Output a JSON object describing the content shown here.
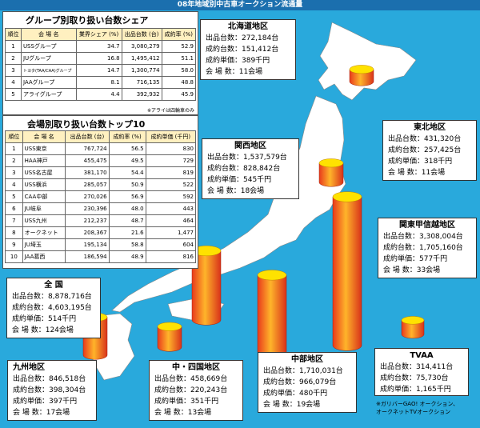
{
  "title": "08年地域別中古車オークション流通量",
  "group_table": {
    "title": "グループ別取り扱い台数シェア",
    "headers": [
      "順位",
      "会 場 名",
      "業界シェア (%)",
      "出品台数 (台)",
      "成約率 (%)"
    ],
    "rows": [
      [
        "1",
        "USSグループ",
        "34.7",
        "3,080,279",
        "52.9"
      ],
      [
        "2",
        "JUグループ",
        "16.8",
        "1,495,412",
        "51.1"
      ],
      [
        "3",
        "トヨタ(TAA/CAA)グループ",
        "14.7",
        "1,300,774",
        "58.0"
      ],
      [
        "4",
        "JAAグループ",
        "8.1",
        "716,135",
        "48.8"
      ],
      [
        "5",
        "アライグループ",
        "4.4",
        "392,932",
        "45.9"
      ]
    ],
    "note": "※アライは四輪車のみ"
  },
  "venue_table": {
    "title": "会場別取り扱い台数トップ10",
    "headers": [
      "順位",
      "会 場 名",
      "出品台数 (台)",
      "成約率 (%)",
      "成約単価 (千円)"
    ],
    "rows": [
      [
        "1",
        "USS東京",
        "767,724",
        "56.5",
        "830"
      ],
      [
        "2",
        "HAA神戸",
        "455,475",
        "49.5",
        "729"
      ],
      [
        "3",
        "USS名古屋",
        "381,170",
        "54.4",
        "819"
      ],
      [
        "4",
        "USS横浜",
        "285,057",
        "50.9",
        "522"
      ],
      [
        "5",
        "CAA中部",
        "270,026",
        "56.9",
        "592"
      ],
      [
        "6",
        "JU岐阜",
        "230,396",
        "48.0",
        "443"
      ],
      [
        "7",
        "USS九州",
        "212,237",
        "48.7",
        "464"
      ],
      [
        "8",
        "オークネット",
        "208,367",
        "21.6",
        "1,477"
      ],
      [
        "9",
        "JU埼玉",
        "195,134",
        "58.8",
        "604"
      ],
      [
        "10",
        "JAA葛西",
        "186,594",
        "48.9",
        "816"
      ]
    ]
  },
  "chart_data": {
    "type": "bar",
    "unit": "台",
    "categories": [
      "北海道地区",
      "東北地区",
      "関東甲信越地区",
      "中部地区",
      "関西地区",
      "中・四国地区",
      "九州地区",
      "TVAA"
    ],
    "values": [
      272184,
      431320,
      3308004,
      1710031,
      1537579,
      458669,
      846518,
      314411
    ]
  },
  "regions": {
    "hokkaido": {
      "name": "北海道地区",
      "lines": [
        "出品台数：272,184台",
        "成約台数：151,412台",
        "成約単価：389千円",
        "会 場 数：11会場"
      ]
    },
    "tohoku": {
      "name": "東北地区",
      "lines": [
        "出品台数：431,320台",
        "成約台数：257,425台",
        "成約単価：318千円",
        "会 場 数：11会場"
      ]
    },
    "kanto": {
      "name": "関東甲信越地区",
      "lines": [
        "出品台数：3,308,004台",
        "成約台数：1,705,160台",
        "成約単価：577千円",
        "会 場 数：33会場"
      ]
    },
    "kansai": {
      "name": "関西地区",
      "lines": [
        "出品台数：1,537,579台",
        "成約台数：828,842台",
        "成約単価：545千円",
        "会 場 数：18会場"
      ]
    },
    "chubu": {
      "name": "中部地区",
      "lines": [
        "出品台数：1,710,031台",
        "成約台数：966,079台",
        "成約単価：480千円",
        "会 場 数：19会場"
      ]
    },
    "chushikoku": {
      "name": "中・四国地区",
      "lines": [
        "出品台数：458,669台",
        "成約台数：220,243台",
        "成約単価：351千円",
        "会 場 数：13会場"
      ]
    },
    "kyushu": {
      "name": "九州地区",
      "lines": [
        "出品台数：846,518台",
        "成約台数：398,304台",
        "成約単価：397千円",
        "会 場 数：17会場"
      ]
    },
    "tvaa": {
      "name": "TVAA",
      "lines": [
        "出品台数：314,411台",
        "成約台数：75,730台",
        "成約単価：1,165千円"
      ]
    },
    "national": {
      "name": "全 国",
      "lines": [
        "出品台数：8,878,716台",
        "成約台数：4,603,195台",
        "成約単価：514千円",
        "会 場 数：124会場"
      ]
    }
  },
  "footnote": [
    "※ガリバーGAO! オークション、",
    "オークネットTVオークション"
  ],
  "colors": {
    "sea": "#29a9dc",
    "land": "#ffffff",
    "cyl_top": "#ffe200",
    "cyl_body": "#f39a12",
    "cyl_dark": "#d22a20"
  }
}
